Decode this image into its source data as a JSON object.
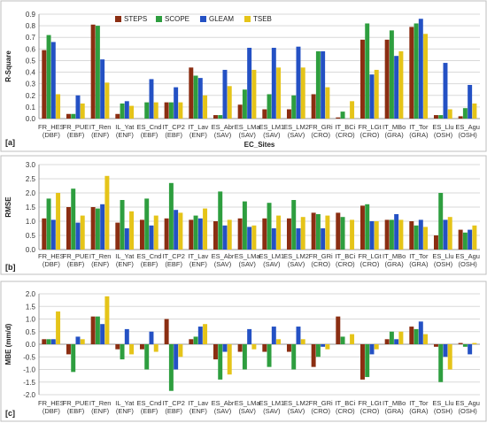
{
  "colors": {
    "STEPS": "#8B2E12",
    "SCOPE": "#2E9E3F",
    "GLEAM": "#2451C4",
    "TSEB": "#E5C419"
  },
  "chart_data": [
    {
      "type": "bar",
      "panel": "[a]",
      "xlabel": "EC_Sites",
      "ylabel": "R-Square",
      "ylim": [
        0,
        0.9
      ],
      "yticks": [
        0,
        0.1,
        0.2,
        0.3,
        0.4,
        0.5,
        0.6,
        0.7,
        0.8,
        0.9
      ],
      "legend": "top-center",
      "categories": [
        [
          "FR_HES",
          "(DBF)"
        ],
        [
          "FR_PUE",
          "(EBF)"
        ],
        [
          "IT_Ren",
          "(ENF)"
        ],
        [
          "IL_Yat",
          "(ENF)"
        ],
        [
          "ES_Cnd",
          "(EBF)"
        ],
        [
          "IT_CP2",
          "(EBF)"
        ],
        [
          "IT_Lav",
          "(ENF)"
        ],
        [
          "ES_Abr",
          "(SAV)"
        ],
        [
          "ES_LMa",
          "(SAV)"
        ],
        [
          "ES_LM1",
          "(SAV)"
        ],
        [
          "ES_LM2",
          "(SAV)"
        ],
        [
          "FR_GRi",
          "(CRO)"
        ],
        [
          "IT_BCi",
          "(CRO)"
        ],
        [
          "FR_LGt",
          "(CRO)"
        ],
        [
          "IT_MBo",
          "(GRA)"
        ],
        [
          "IT_Tor",
          "(GRA)"
        ],
        [
          "ES_Llu",
          "(OSH)"
        ],
        [
          "ES_Agu",
          "(OSH)"
        ]
      ],
      "series": [
        {
          "name": "STEPS",
          "values": [
            0.59,
            0.04,
            0.81,
            0.04,
            0.0,
            0.14,
            0.44,
            0.03,
            0.12,
            0.08,
            0.08,
            0.21,
            0.01,
            0.68,
            0.68,
            0.79,
            0.03,
            0.02
          ]
        },
        {
          "name": "SCOPE",
          "values": [
            0.72,
            0.04,
            0.8,
            0.13,
            0.14,
            0.14,
            0.37,
            0.03,
            0.25,
            0.21,
            0.2,
            0.58,
            0.06,
            0.82,
            0.76,
            0.82,
            0.03,
            0.09
          ]
        },
        {
          "name": "GLEAM",
          "values": [
            0.66,
            0.2,
            0.51,
            0.15,
            0.34,
            0.27,
            0.35,
            0.42,
            0.61,
            0.61,
            0.62,
            0.58,
            0.0,
            0.38,
            0.54,
            0.86,
            0.48,
            0.29
          ]
        },
        {
          "name": "TSEB",
          "values": [
            0.21,
            0.13,
            0.31,
            0.11,
            0.14,
            0.14,
            0.2,
            0.28,
            0.42,
            0.44,
            0.44,
            0.27,
            0.15,
            0.42,
            0.58,
            0.73,
            0.08,
            0.13
          ]
        }
      ]
    },
    {
      "type": "bar",
      "panel": "[b]",
      "xlabel": "",
      "ylabel": "RMSE",
      "ylim": [
        0,
        3.0
      ],
      "yticks": [
        0,
        0.5,
        1.0,
        1.5,
        2.0,
        2.5,
        3.0
      ],
      "categories": [
        [
          "FR_HES",
          "(DBF)"
        ],
        [
          "FR_PUE",
          "(EBF)"
        ],
        [
          "IT_Ren",
          "(ENF)"
        ],
        [
          "IL_Yat",
          "(ENF)"
        ],
        [
          "ES_Cnd",
          "(EBF)"
        ],
        [
          "IT_CP2",
          "(EBF)"
        ],
        [
          "IT_Lav",
          "(ENF)"
        ],
        [
          "ES_Abr",
          "(SAV)"
        ],
        [
          "ES_LMa",
          "(SAV)"
        ],
        [
          "ES_LM1",
          "(SAV)"
        ],
        [
          "ES_LM2",
          "(SAV)"
        ],
        [
          "FR_GRi",
          "(CRO)"
        ],
        [
          "IT_BCi",
          "(CRO)"
        ],
        [
          "FR_LGt",
          "(CRO)"
        ],
        [
          "IT_MBo",
          "(GRA)"
        ],
        [
          "IT_Tor",
          "(GRA)"
        ],
        [
          "ES_Llu",
          "(OSH)"
        ],
        [
          "ES_Agu",
          "(OSH)"
        ]
      ],
      "series": [
        {
          "name": "STEPS",
          "values": [
            1.1,
            1.5,
            1.5,
            0.95,
            1.05,
            1.1,
            1.05,
            1.0,
            1.1,
            1.1,
            1.1,
            1.3,
            1.3,
            1.55,
            1.05,
            1.0,
            0.5,
            0.7
          ]
        },
        {
          "name": "SCOPE",
          "values": [
            1.8,
            2.15,
            1.45,
            1.75,
            1.8,
            2.35,
            1.2,
            2.05,
            1.7,
            1.65,
            1.75,
            1.25,
            1.15,
            1.6,
            1.05,
            0.85,
            2.0,
            0.6
          ]
        },
        {
          "name": "GLEAM",
          "values": [
            1.05,
            0.95,
            1.6,
            0.75,
            0.85,
            1.4,
            1.1,
            0.85,
            0.8,
            0.75,
            0.75,
            0.75,
            0.0,
            1.0,
            1.25,
            1.05,
            1.05,
            0.7
          ]
        },
        {
          "name": "TSEB",
          "values": [
            2.0,
            1.2,
            2.6,
            1.35,
            1.2,
            1.3,
            1.45,
            1.05,
            0.85,
            1.2,
            1.15,
            1.2,
            1.05,
            1.0,
            1.05,
            0.8,
            1.15,
            0.85
          ]
        }
      ]
    },
    {
      "type": "bar",
      "panel": "[c]",
      "xlabel": "",
      "ylabel": "MBE (mm/d)",
      "ylim": [
        -2.0,
        2.0
      ],
      "yticks": [
        -2.0,
        -1.5,
        -1.0,
        -0.5,
        0.0,
        0.5,
        1.0,
        1.5,
        2.0
      ],
      "categories": [
        [
          "FR_HES",
          "(DBF)"
        ],
        [
          "FR_PUE",
          "(EBF)"
        ],
        [
          "IT_Ren",
          "(ENF)"
        ],
        [
          "IL_Yat",
          "(ENF)"
        ],
        [
          "ES_Cnd",
          "(EBF)"
        ],
        [
          "IT_CP2",
          "(EBF)"
        ],
        [
          "IT_Lav",
          "(ENF)"
        ],
        [
          "ES_Abr",
          "(SAV)"
        ],
        [
          "ES_LMa",
          "(SAV)"
        ],
        [
          "ES_LM1",
          "(SAV)"
        ],
        [
          "ES_LM2",
          "(SAV)"
        ],
        [
          "FR_GRi",
          "(CRO)"
        ],
        [
          "IT_BCi",
          "(CRO)"
        ],
        [
          "FR_LGt",
          "(CRO)"
        ],
        [
          "IT_MBo",
          "(GRA)"
        ],
        [
          "IT_Tor",
          "(GRA)"
        ],
        [
          "ES_Llu",
          "(OSH)"
        ],
        [
          "ES_Agu",
          "(OSH)"
        ]
      ],
      "series": [
        {
          "name": "STEPS",
          "values": [
            0.2,
            -0.4,
            1.1,
            -0.2,
            -0.2,
            1.0,
            0.2,
            -0.6,
            -0.3,
            -0.3,
            -0.3,
            -0.9,
            1.1,
            -1.4,
            0.2,
            0.7,
            -0.1,
            0.05
          ]
        },
        {
          "name": "SCOPE",
          "values": [
            0.2,
            -1.1,
            1.1,
            -0.6,
            -1.0,
            -1.85,
            0.3,
            -1.4,
            -1.0,
            -0.9,
            -1.0,
            -0.5,
            0.3,
            -1.3,
            0.5,
            0.6,
            -1.5,
            -0.1
          ]
        },
        {
          "name": "GLEAM",
          "values": [
            0.2,
            0.3,
            0.8,
            0.6,
            0.5,
            -1.0,
            0.7,
            -0.3,
            0.6,
            0.7,
            0.7,
            -0.1,
            0.0,
            -0.4,
            0.2,
            0.9,
            -0.5,
            -0.4
          ]
        },
        {
          "name": "TSEB",
          "values": [
            1.3,
            0.2,
            1.9,
            -0.4,
            -0.3,
            -0.5,
            0.8,
            -1.2,
            -0.2,
            0.2,
            0.2,
            -0.2,
            0.4,
            -0.2,
            0.5,
            0.4,
            -1.0,
            0.05
          ]
        }
      ]
    }
  ]
}
